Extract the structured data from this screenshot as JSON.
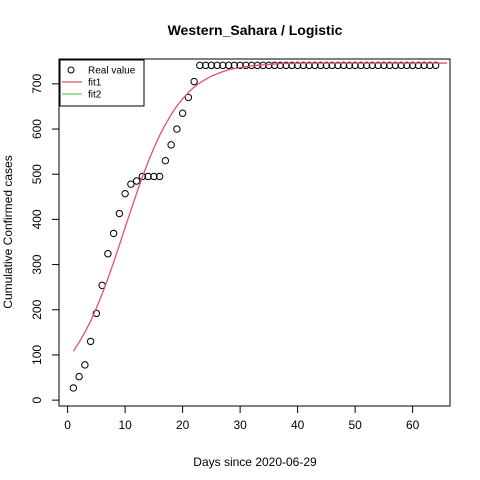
{
  "chart_data": {
    "type": "scatter",
    "title": "Western_Sahara / Logistic",
    "xlabel": "Days since 2020-06-29",
    "ylabel": "Cumulative Confirmed cases",
    "xlim": [
      -1.5,
      66.5
    ],
    "ylim": [
      -13,
      755
    ],
    "xticks": [
      0,
      10,
      20,
      30,
      40,
      50,
      60
    ],
    "yticks": [
      0,
      100,
      200,
      300,
      400,
      500,
      600,
      700
    ],
    "legend_position": "top-left",
    "grid": false,
    "series": [
      {
        "name": "Real value",
        "kind": "points",
        "color": "#000000",
        "x": [
          1,
          2,
          3,
          4,
          5,
          6,
          7,
          8,
          9,
          10,
          11,
          12,
          13,
          14,
          15,
          16,
          17,
          18,
          19,
          20,
          21,
          22,
          23,
          24,
          25,
          26,
          27,
          28,
          29,
          30,
          31,
          32,
          33,
          34,
          35,
          36,
          37,
          38,
          39,
          40,
          41,
          42,
          43,
          44,
          45,
          46,
          47,
          48,
          49,
          50,
          51,
          52,
          53,
          54,
          55,
          56,
          57,
          58,
          59,
          60,
          61,
          62,
          63,
          64
        ],
        "y": [
          27,
          52,
          78,
          130,
          192,
          254,
          324,
          369,
          413,
          457,
          478,
          485,
          495,
          495,
          495,
          495,
          530,
          565,
          600,
          635,
          670,
          705,
          741,
          741,
          741,
          741,
          741,
          741,
          741,
          741,
          741,
          741,
          741,
          741,
          741,
          741,
          741,
          741,
          741,
          741,
          741,
          741,
          741,
          741,
          741,
          741,
          741,
          741,
          741,
          741,
          741,
          741,
          741,
          741,
          741,
          741,
          741,
          741,
          741,
          741,
          741,
          741,
          741,
          741
        ]
      },
      {
        "name": "fit1",
        "kind": "line",
        "color": "#DF536B",
        "x": [
          1,
          2,
          3,
          4,
          5,
          6,
          7,
          8,
          9,
          10,
          11,
          12,
          13,
          14,
          15,
          16,
          17,
          18,
          19,
          20,
          21,
          22,
          23,
          24,
          25,
          26,
          27,
          28,
          29,
          30,
          31,
          32,
          33,
          34,
          35,
          36,
          37,
          38,
          39,
          40,
          41,
          42,
          43,
          44,
          45,
          46,
          47,
          48,
          49,
          50,
          51,
          52,
          53,
          54,
          55,
          56,
          57,
          58,
          59,
          60,
          61,
          62,
          63,
          64,
          65,
          66
        ],
        "y": [
          108,
          128,
          150,
          175,
          204,
          235,
          269,
          305,
          343,
          382,
          420,
          458,
          494,
          527,
          558,
          586,
          610,
          632,
          651,
          667,
          681,
          693,
          702,
          710,
          717,
          722,
          727,
          731,
          734,
          736,
          738,
          740,
          741,
          742,
          743,
          744,
          745,
          745,
          745,
          746,
          746,
          746,
          746,
          746,
          746,
          746,
          746,
          746,
          746,
          746,
          746,
          746,
          746,
          746,
          746,
          746,
          746,
          746,
          746,
          746,
          746,
          746,
          746,
          746,
          746,
          746
        ]
      },
      {
        "name": "fit2",
        "kind": "line",
        "color": "#61D04F",
        "x": [],
        "y": []
      }
    ]
  }
}
